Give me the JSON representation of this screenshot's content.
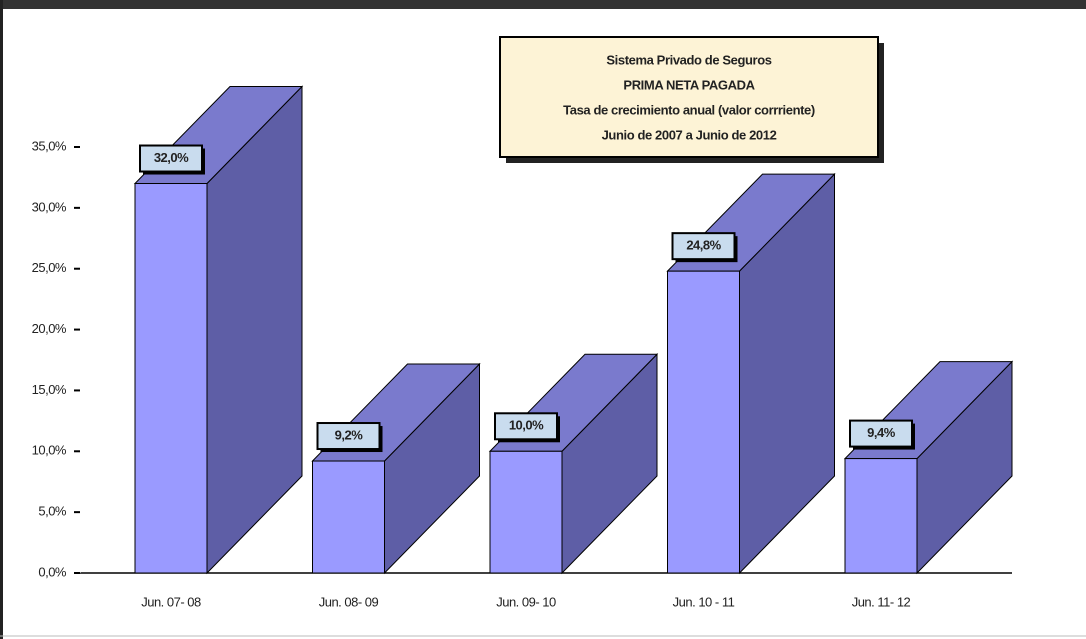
{
  "chart_data": {
    "type": "bar3d",
    "title_lines": [
      "Sistema Privado de Seguros",
      "PRIMA NETA PAGADA",
      "Tasa de crecimiento anual (valor corrriente)",
      "Junio de 2007 a  Junio de 2012"
    ],
    "categories": [
      "Jun. 07- 08",
      "Jun. 08- 09",
      "Jun. 09- 10",
      "Jun. 10 - 11",
      "Jun. 11- 12"
    ],
    "values": [
      32.0,
      9.2,
      10.0,
      24.8,
      9.4
    ],
    "value_labels": [
      "32,0%",
      "9,2%",
      "10,0%",
      "24,8%",
      "9,4%"
    ],
    "colors": {
      "front": "#9a9aff",
      "side": "#5e5ea6",
      "top": "#7a7acd"
    },
    "ylim": [
      0,
      35
    ],
    "yticks": [
      {
        "value": 0,
        "label": "0,0%"
      },
      {
        "value": 5,
        "label": "5,0%"
      },
      {
        "value": 10,
        "label": "10,0%"
      },
      {
        "value": 15,
        "label": "15,0%"
      },
      {
        "value": 20,
        "label": "20,0%"
      },
      {
        "value": 25,
        "label": "25,0%"
      },
      {
        "value": 30,
        "label": "30,0%"
      },
      {
        "value": 35,
        "label": "35,0%"
      }
    ]
  }
}
